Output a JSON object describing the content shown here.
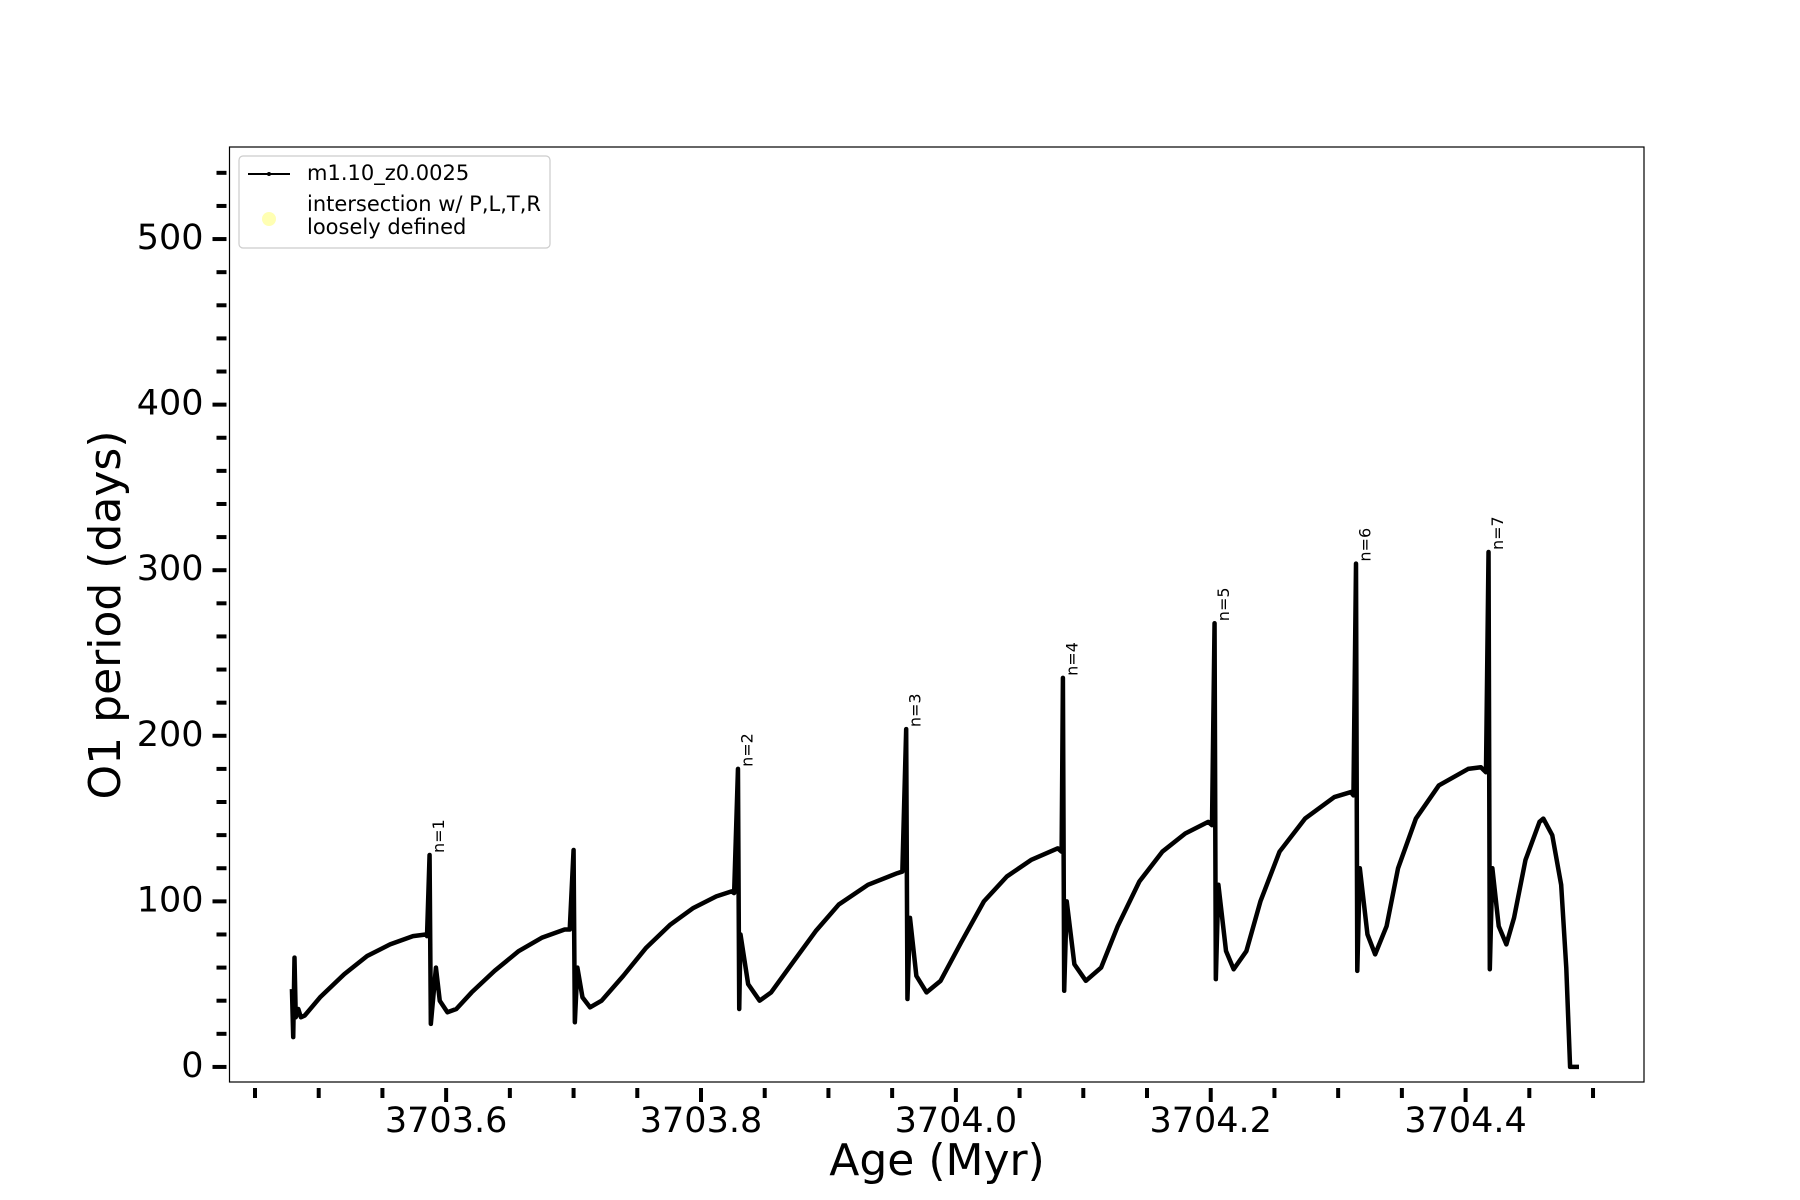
{
  "chart_data": {
    "type": "line",
    "x_label": "Age (Myr)",
    "y_label": "O1 period (days)",
    "xlim": [
      3703.43,
      3704.54
    ],
    "ylim": [
      -9.1,
      555.6
    ],
    "xticks": [
      3703.6,
      3703.8,
      {
        "value": 3704.0,
        "label": "3704.0"
      },
      3704.2,
      3704.4
    ],
    "xminorticks": [
      3703.45,
      3703.5,
      3703.55,
      3703.65,
      3703.7,
      3703.75,
      3703.85,
      3703.9,
      3703.95,
      3704.05,
      3704.1,
      3704.15,
      3704.25,
      3704.3,
      3704.35,
      3704.45,
      3704.5
    ],
    "yticks": [
      0,
      100,
      200,
      300,
      400,
      500
    ],
    "yminorticks": [
      20,
      40,
      60,
      80,
      120,
      140,
      160,
      180,
      220,
      240,
      260,
      280,
      320,
      340,
      360,
      380,
      420,
      440,
      460,
      480,
      520,
      540
    ],
    "legend": "upper left",
    "x": [
      3703.479,
      3703.48,
      3703.481,
      3703.482,
      3703.484,
      3703.486,
      3703.489,
      3703.501,
      3703.52,
      3703.538,
      3703.556,
      3703.574,
      3703.584,
      3703.585,
      3703.587,
      3703.588,
      3703.592,
      3703.595,
      3703.601,
      3703.608,
      3703.62,
      3703.638,
      3703.657,
      3703.675,
      3703.693,
      3703.697,
      3703.7,
      3703.701,
      3703.703,
      3703.707,
      3703.713,
      3703.722,
      3703.739,
      3703.757,
      3703.776,
      3703.794,
      3703.812,
      3703.824,
      3703.826,
      3703.829,
      3703.83,
      3703.831,
      3703.837,
      3703.846,
      3703.855,
      3703.871,
      3703.89,
      3703.908,
      3703.931,
      3703.954,
      3703.958,
      3703.961,
      3703.962,
      3703.964,
      3703.969,
      3703.977,
      3703.988,
      3704.004,
      3704.022,
      3704.04,
      3704.059,
      3704.08,
      3704.083,
      3704.084,
      3704.085,
      3704.087,
      3704.093,
      3704.102,
      3704.114,
      3704.127,
      3704.144,
      3704.162,
      3704.18,
      3704.198,
      3704.201,
      3704.203,
      3704.204,
      3704.206,
      3704.212,
      3704.218,
      3704.228,
      3704.239,
      3704.254,
      3704.274,
      3704.297,
      3704.31,
      3704.312,
      3704.314,
      3704.315,
      3704.317,
      3704.323,
      3704.329,
      3704.338,
      3704.347,
      3704.361,
      3704.379,
      3704.402,
      3704.412,
      3704.416,
      3704.418,
      3704.419,
      3704.421,
      3704.426,
      3704.432,
      3704.438,
      3704.447,
      3704.458,
      3704.461,
      3704.468,
      3704.475,
      3704.479,
      3704.482,
      3704.489
    ],
    "series": [
      {
        "name": "m1.10_z0.0025",
        "color": "#000000",
        "values": [
          47,
          18,
          66,
          30,
          35,
          30,
          31,
          42,
          56,
          67,
          74,
          79,
          80,
          79,
          128,
          26,
          60,
          40,
          33,
          35,
          45,
          58,
          70,
          78,
          83,
          83,
          131,
          27,
          60,
          42,
          36,
          40,
          55,
          72,
          86,
          96,
          103,
          106,
          105,
          180,
          35,
          80,
          50,
          40,
          45,
          62,
          82,
          98,
          110,
          117,
          118,
          204,
          41,
          90,
          55,
          45,
          52,
          75,
          100,
          115,
          125,
          132,
          130,
          235,
          46,
          100,
          62,
          52,
          60,
          85,
          112,
          130,
          141,
          148,
          146,
          268,
          53,
          110,
          70,
          59,
          70,
          100,
          130,
          150,
          163,
          166,
          164,
          304,
          58,
          120,
          80,
          68,
          85,
          120,
          150,
          170,
          180,
          181,
          178,
          311,
          59,
          120,
          85,
          74,
          90,
          125,
          148,
          150,
          140,
          110,
          60,
          0,
          0
        ]
      }
    ],
    "highlight": {
      "name": [
        "intersection w/ P,L,T,R",
        "loosely defined"
      ],
      "color": "#ffffb3"
    },
    "annotations": [
      {
        "text": "n=1",
        "x": 3703.587,
        "y": 128
      },
      {
        "text": "n=2",
        "x": 3703.829,
        "y": 180
      },
      {
        "text": "n=3",
        "x": 3703.961,
        "y": 204
      },
      {
        "text": "n=4",
        "x": 3704.084,
        "y": 235
      },
      {
        "text": "n=5",
        "x": 3704.203,
        "y": 268
      },
      {
        "text": "n=6",
        "x": 3704.314,
        "y": 304
      },
      {
        "text": "n=7",
        "x": 3704.418,
        "y": 311
      }
    ]
  }
}
